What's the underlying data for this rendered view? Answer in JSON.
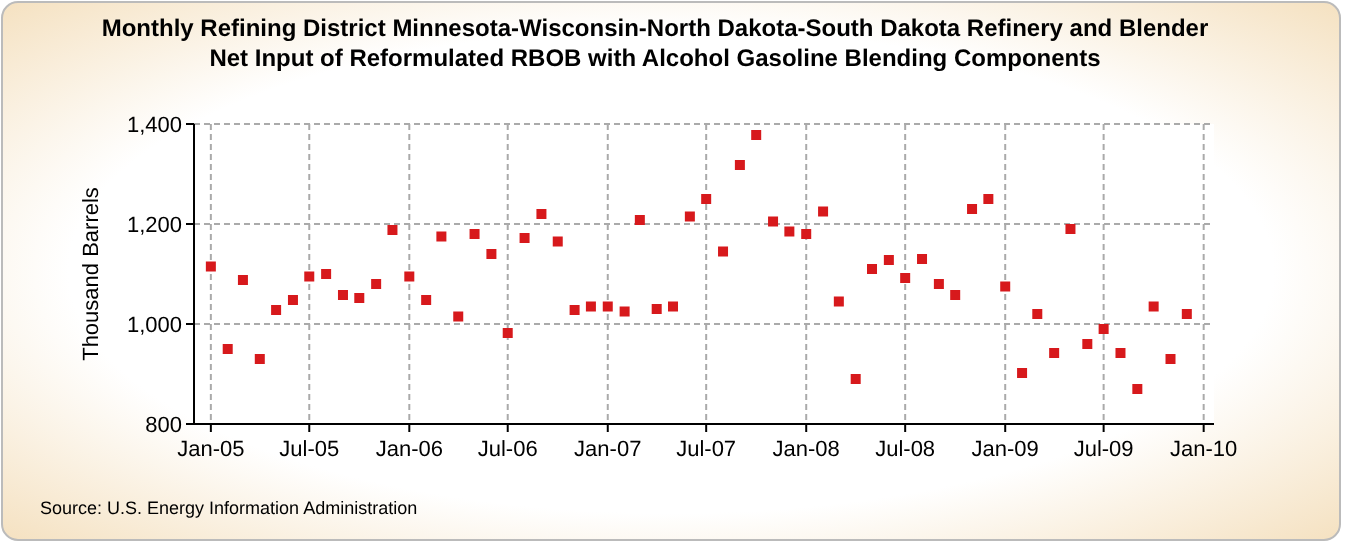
{
  "chart_data": {
    "type": "scatter",
    "title": "Monthly Refining District Minnesota-Wisconsin-North Dakota-South Dakota Refinery and Blender Net Input of Reformulated RBOB with Alcohol Gasoline Blending Components",
    "ylabel": "Thousand Barrels",
    "annotations": [
      "Source: U.S. Energy Information Administration"
    ],
    "x": [
      "2005-01",
      "2005-02",
      "2005-03",
      "2005-04",
      "2005-05",
      "2005-06",
      "2005-07",
      "2005-08",
      "2005-09",
      "2005-10",
      "2005-11",
      "2005-12",
      "2006-01",
      "2006-02",
      "2006-03",
      "2006-04",
      "2006-05",
      "2006-06",
      "2006-07",
      "2006-08",
      "2006-09",
      "2006-10",
      "2006-11",
      "2006-12",
      "2007-01",
      "2007-02",
      "2007-03",
      "2007-04",
      "2007-05",
      "2007-06",
      "2007-07",
      "2007-08",
      "2007-09",
      "2007-10",
      "2007-11",
      "2007-12",
      "2008-01",
      "2008-02",
      "2008-03",
      "2008-04",
      "2008-05",
      "2008-06",
      "2008-07",
      "2008-08",
      "2008-09",
      "2008-10",
      "2008-11",
      "2008-12",
      "2009-01",
      "2009-02",
      "2009-03",
      "2009-04",
      "2009-05",
      "2009-06",
      "2009-07",
      "2009-08",
      "2009-09",
      "2009-10",
      "2009-11",
      "2009-12"
    ],
    "series": [
      {
        "color": "#d7191c",
        "values": [
          1115,
          950,
          1088,
          930,
          1028,
          1048,
          1095,
          1100,
          1058,
          1052,
          1080,
          1188,
          1095,
          1048,
          1175,
          1015,
          1180,
          1140,
          982,
          1172,
          1220,
          1165,
          1028,
          1035,
          1035,
          1025,
          1208,
          1030,
          1035,
          1215,
          1250,
          1145,
          1318,
          1378,
          1205,
          1185,
          1180,
          1225,
          1045,
          890,
          1110,
          1128,
          1092,
          1130,
          1080,
          1058,
          1230,
          1250,
          1075,
          902,
          1020,
          942,
          1190,
          960,
          990,
          942,
          870,
          1035,
          930,
          1020
        ]
      }
    ],
    "xlim": [
      "2004-12-01",
      "2010-01-20"
    ],
    "xticks": [
      {
        "value": "2005-01",
        "label": "Jan-05"
      },
      {
        "value": "2005-07",
        "label": "Jul-05"
      },
      {
        "value": "2006-01",
        "label": "Jan-06"
      },
      {
        "value": "2006-07",
        "label": "Jul-06"
      },
      {
        "value": "2007-01",
        "label": "Jan-07"
      },
      {
        "value": "2007-07",
        "label": "Jul-07"
      },
      {
        "value": "2008-01",
        "label": "Jan-08"
      },
      {
        "value": "2008-07",
        "label": "Jul-08"
      },
      {
        "value": "2009-01",
        "label": "Jan-09"
      },
      {
        "value": "2009-07",
        "label": "Jul-09"
      },
      {
        "value": "2010-01",
        "label": "Jan-10"
      }
    ],
    "ylim": [
      800,
      1400
    ],
    "yticks": [
      {
        "value": 800,
        "label": "800"
      },
      {
        "value": 1000,
        "label": "1,000"
      },
      {
        "value": 1200,
        "label": "1,200"
      },
      {
        "value": 1400,
        "label": "1,400"
      }
    ],
    "grid": true,
    "marker": "square"
  }
}
